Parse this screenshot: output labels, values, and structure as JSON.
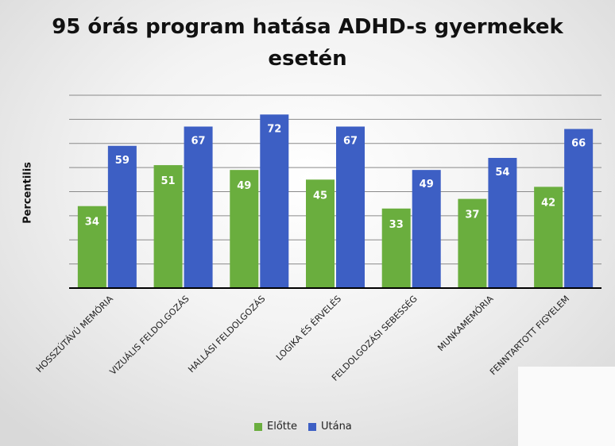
{
  "chart_data": {
    "type": "bar",
    "title_line1": "95 órás program hatása ADHD-s gyermekek",
    "title_line2": "esetén",
    "xlabel": "",
    "ylabel": "Percentilis",
    "categories": [
      "HOSSZÚTÁVÚ MEMÓRIA",
      "VIZUÁLIS FELDOLGOZÁS",
      "HALLÁSI FELDOLGOZÁS",
      "LOGIKA ÉS ÉRVELÉS",
      "FELDOLGOZÁSI SEBESSÉG",
      "MUNKAMEMÓRIA",
      "FENNTARTOTT FIGYELEM"
    ],
    "series": [
      {
        "name": "Előtte",
        "color": "#6aae3e",
        "values": [
          34,
          51,
          49,
          45,
          33,
          37,
          42
        ]
      },
      {
        "name": "Utána",
        "color": "#3d5fc4",
        "values": [
          59,
          67,
          72,
          67,
          49,
          54,
          66
        ]
      }
    ],
    "ylim": [
      0,
      80
    ],
    "grid": true,
    "legend": "bottom",
    "data_labels": true
  }
}
